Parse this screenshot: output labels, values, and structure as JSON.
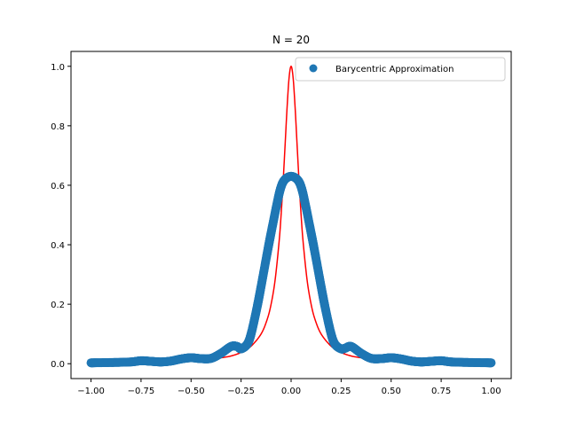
{
  "colors": {
    "true_function": "#ff0000",
    "approximation": "#1f77b4",
    "axes": "#000000",
    "legend_border": "#cccccc",
    "background": "#ffffff"
  },
  "chart_data": {
    "type": "scatter",
    "title": "N = 20",
    "xlabel": "",
    "ylabel": "",
    "xlim": [
      -1.1,
      1.1
    ],
    "ylim": [
      -0.05,
      1.05
    ],
    "grid": false,
    "legend": {
      "placement": "upper right",
      "entries": [
        "Barycentric Approximation"
      ]
    },
    "x_ticks": [
      -1.0,
      -0.75,
      -0.5,
      -0.25,
      0.0,
      0.25,
      0.5,
      0.75,
      1.0
    ],
    "x_tick_labels": [
      "−1.00",
      "−0.75",
      "−0.50",
      "−0.25",
      "0.00",
      "0.25",
      "0.50",
      "0.75",
      "1.00"
    ],
    "y_ticks": [
      0.0,
      0.2,
      0.4,
      0.6,
      0.8,
      1.0
    ],
    "y_tick_labels": [
      "0.0",
      "0.2",
      "0.4",
      "0.6",
      "0.8",
      "1.0"
    ],
    "series": [
      {
        "kind": "line",
        "color": "#ff0000",
        "x": [
          -1.0,
          -0.9,
          -0.8,
          -0.7,
          -0.6,
          -0.5,
          -0.4,
          -0.35,
          -0.3,
          -0.25,
          -0.2,
          -0.15,
          -0.12,
          -0.1,
          -0.08,
          -0.06,
          -0.05,
          -0.04,
          -0.03,
          -0.02,
          -0.01,
          0.0,
          0.01,
          0.02,
          0.03,
          0.04,
          0.05,
          0.06,
          0.08,
          0.1,
          0.12,
          0.15,
          0.2,
          0.25,
          0.3,
          0.35,
          0.4,
          0.5,
          0.6,
          0.7,
          0.8,
          0.9,
          1.0
        ],
        "y": [
          0.0025,
          0.003,
          0.004,
          0.005,
          0.007,
          0.01,
          0.015,
          0.02,
          0.026,
          0.038,
          0.059,
          0.1,
          0.148,
          0.2,
          0.281,
          0.41,
          0.5,
          0.61,
          0.735,
          0.862,
          0.962,
          1.0,
          0.962,
          0.862,
          0.735,
          0.61,
          0.5,
          0.41,
          0.281,
          0.2,
          0.148,
          0.1,
          0.059,
          0.038,
          0.026,
          0.02,
          0.015,
          0.01,
          0.007,
          0.005,
          0.004,
          0.003,
          0.0025
        ]
      },
      {
        "kind": "scatter",
        "name": "Barycentric Approximation",
        "color": "#1f77b4",
        "x": [
          -1.0,
          -0.9,
          -0.8,
          -0.75,
          -0.7,
          -0.65,
          -0.6,
          -0.55,
          -0.5,
          -0.45,
          -0.4,
          -0.35,
          -0.3,
          -0.27,
          -0.25,
          -0.22,
          -0.2,
          -0.17,
          -0.15,
          -0.12,
          -0.1,
          -0.07,
          -0.05,
          -0.03,
          0.0,
          0.03,
          0.05,
          0.07,
          0.1,
          0.12,
          0.15,
          0.17,
          0.2,
          0.22,
          0.25,
          0.27,
          0.3,
          0.35,
          0.4,
          0.45,
          0.5,
          0.55,
          0.6,
          0.65,
          0.7,
          0.75,
          0.8,
          0.9,
          1.0
        ],
        "y": [
          0.003,
          0.004,
          0.006,
          0.01,
          0.008,
          0.006,
          0.009,
          0.016,
          0.02,
          0.017,
          0.018,
          0.035,
          0.058,
          0.058,
          0.05,
          0.065,
          0.1,
          0.19,
          0.26,
          0.37,
          0.44,
          0.54,
          0.595,
          0.62,
          0.63,
          0.62,
          0.595,
          0.54,
          0.44,
          0.37,
          0.26,
          0.19,
          0.1,
          0.065,
          0.05,
          0.052,
          0.058,
          0.035,
          0.018,
          0.017,
          0.02,
          0.016,
          0.009,
          0.006,
          0.008,
          0.01,
          0.006,
          0.004,
          0.003
        ]
      }
    ]
  }
}
